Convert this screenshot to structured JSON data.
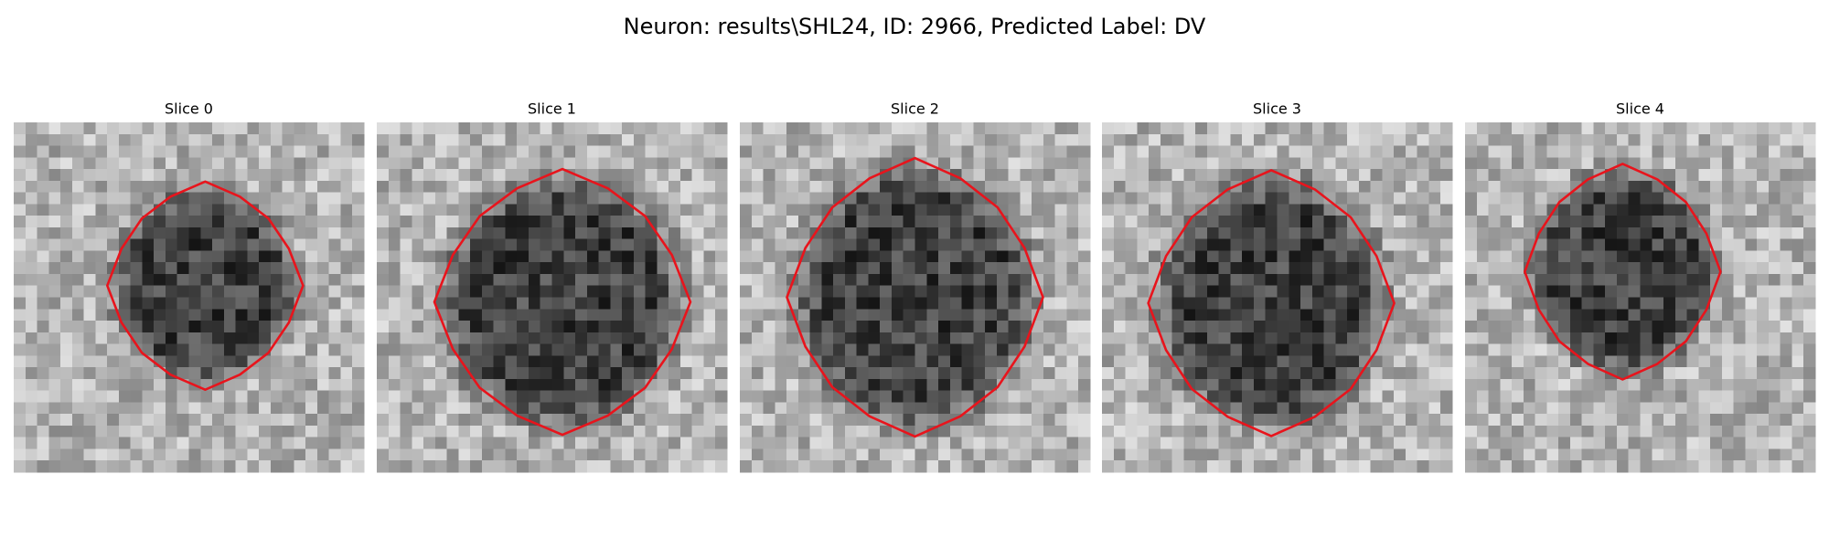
{
  "title": "Neuron: results\\SHL24, ID: 2966, Predicted Label: DV",
  "panels": [
    {
      "title": "Slice 0"
    },
    {
      "title": "Slice 1"
    },
    {
      "title": "Slice 2"
    },
    {
      "title": "Slice 3"
    },
    {
      "title": "Slice 4"
    }
  ]
}
